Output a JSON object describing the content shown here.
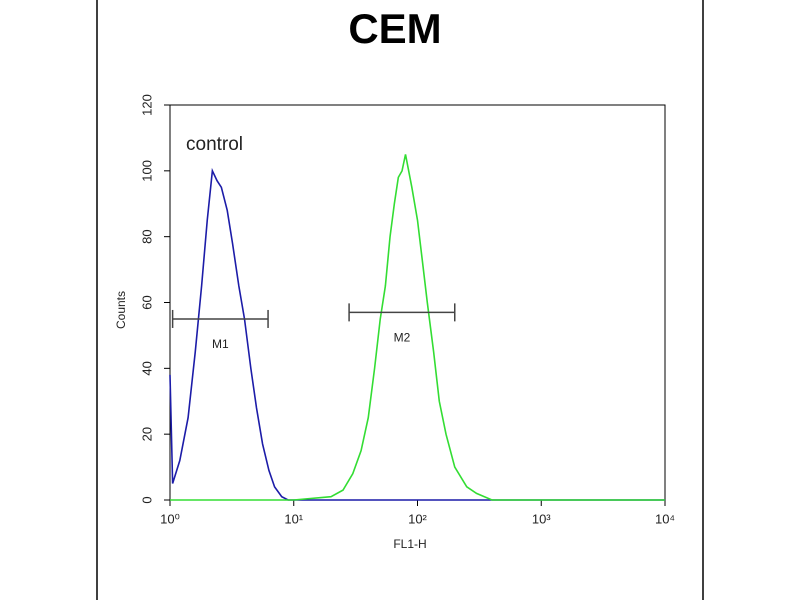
{
  "chart_data": {
    "type": "histogram-line",
    "title": "CEM",
    "xlabel": "FL1-H",
    "ylabel": "Counts",
    "xscale": "log",
    "xlim": [
      1,
      10000
    ],
    "ylim": [
      0,
      120
    ],
    "xticks": [
      {
        "value": 1,
        "label": "10⁰"
      },
      {
        "value": 10,
        "label": "10¹"
      },
      {
        "value": 100,
        "label": "10²"
      },
      {
        "value": 1000,
        "label": "10³"
      },
      {
        "value": 10000,
        "label": "10⁴"
      }
    ],
    "yticks": [
      0,
      20,
      40,
      60,
      80,
      100,
      120
    ],
    "series": [
      {
        "color": "#1c1ca8",
        "x": [
          1,
          1.05,
          1.2,
          1.4,
          1.6,
          1.8,
          2.0,
          2.2,
          2.4,
          2.6,
          2.9,
          3.2,
          3.6,
          4.0,
          4.5,
          5.0,
          5.6,
          6.3,
          7.0,
          8.0,
          9.0,
          10,
          20,
          50,
          100,
          1000,
          10000
        ],
        "values": [
          38,
          5,
          12,
          25,
          45,
          65,
          85,
          100,
          97,
          95,
          88,
          78,
          65,
          55,
          40,
          28,
          17,
          9,
          4,
          1,
          0,
          0,
          0,
          0,
          0,
          0,
          0
        ]
      },
      {
        "color": "#33dd33",
        "x": [
          1,
          10,
          20,
          25,
          30,
          35,
          40,
          45,
          50,
          55,
          60,
          65,
          70,
          75,
          80,
          90,
          100,
          110,
          120,
          135,
          150,
          170,
          200,
          250,
          300,
          400,
          1000,
          10000
        ],
        "values": [
          0,
          0,
          1,
          3,
          8,
          15,
          25,
          40,
          55,
          65,
          80,
          90,
          98,
          100,
          105,
          95,
          85,
          72,
          60,
          45,
          30,
          20,
          10,
          4,
          2,
          0,
          0,
          0
        ]
      }
    ],
    "markers": [
      {
        "label": "M1",
        "x": [
          1.05,
          6.2
        ],
        "y": 55
      },
      {
        "label": "M2",
        "x": [
          28,
          200
        ],
        "y": 57
      }
    ],
    "annotations": [
      {
        "text": "control"
      }
    ]
  }
}
